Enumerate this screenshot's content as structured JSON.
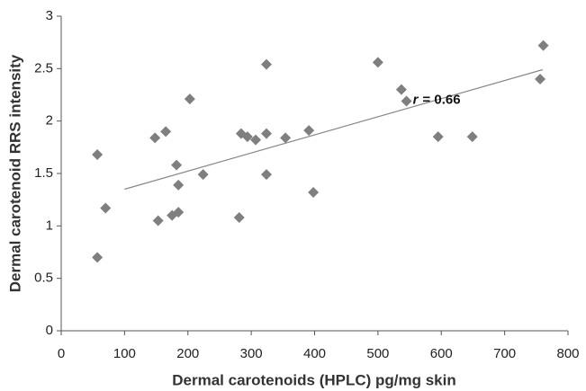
{
  "chart_data": {
    "type": "scatter",
    "xlabel": "Dermal carotenoids (HPLC) pg/mg skin",
    "ylabel": "Dermal carotenoid RRS intensity",
    "color": "#7f7f7f",
    "x": [
      57,
      57,
      70,
      148,
      165,
      153,
      182,
      185,
      175,
      185,
      203,
      224,
      281,
      284,
      294,
      307,
      324,
      324,
      324,
      354,
      391,
      398,
      500,
      537,
      545,
      595,
      649,
      756,
      761
    ],
    "values": [
      1.68,
      0.7,
      1.17,
      1.84,
      1.9,
      1.05,
      1.58,
      1.39,
      1.1,
      1.13,
      2.21,
      1.49,
      1.08,
      1.88,
      1.85,
      1.82,
      1.88,
      1.49,
      2.54,
      1.84,
      1.91,
      1.32,
      2.56,
      2.3,
      2.19,
      1.85,
      1.85,
      2.4,
      2.72
    ],
    "trendline": {
      "x": [
        100,
        760
      ],
      "y": [
        1.35,
        2.49
      ],
      "color": "#888888"
    },
    "annotation": {
      "var": "r",
      "text": "= 0.66",
      "x": 555,
      "y": 2.2
    },
    "xlim": [
      0,
      800
    ],
    "xticks": [
      0,
      100,
      200,
      300,
      400,
      500,
      600,
      700,
      800
    ],
    "ylim": [
      0,
      3
    ],
    "yticks": [
      0,
      0.5,
      1,
      1.5,
      2,
      2.5,
      3
    ],
    "grid": false
  }
}
